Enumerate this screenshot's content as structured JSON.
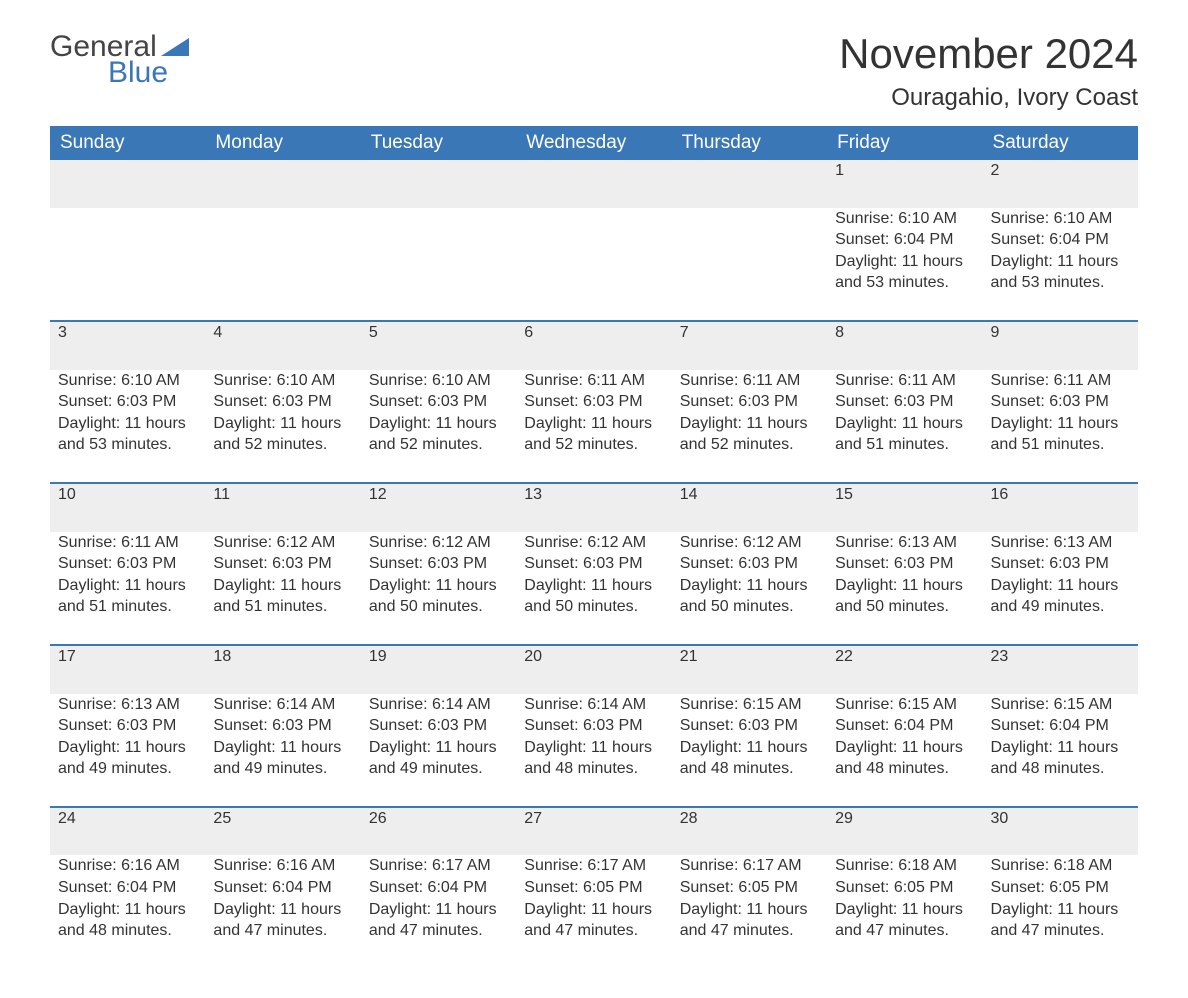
{
  "logo": {
    "word1": "General",
    "word2": "Blue",
    "accent_color": "#3a77b7"
  },
  "title": "November 2024",
  "location": "Ouragahio, Ivory Coast",
  "colors": {
    "header_bg": "#3a77b7",
    "header_text": "#ffffff",
    "daynum_bg": "#eeeeee",
    "row_border": "#3a77b7",
    "body_text": "#333333"
  },
  "fonts": {
    "title_size": 42,
    "location_size": 24,
    "header_size": 19,
    "cell_size": 16
  },
  "weekdays": [
    "Sunday",
    "Monday",
    "Tuesday",
    "Wednesday",
    "Thursday",
    "Friday",
    "Saturday"
  ],
  "weeks": [
    [
      null,
      null,
      null,
      null,
      null,
      {
        "n": "1",
        "sunrise": "6:10 AM",
        "sunset": "6:04 PM",
        "daylight": "11 hours and 53 minutes."
      },
      {
        "n": "2",
        "sunrise": "6:10 AM",
        "sunset": "6:04 PM",
        "daylight": "11 hours and 53 minutes."
      }
    ],
    [
      {
        "n": "3",
        "sunrise": "6:10 AM",
        "sunset": "6:03 PM",
        "daylight": "11 hours and 53 minutes."
      },
      {
        "n": "4",
        "sunrise": "6:10 AM",
        "sunset": "6:03 PM",
        "daylight": "11 hours and 52 minutes."
      },
      {
        "n": "5",
        "sunrise": "6:10 AM",
        "sunset": "6:03 PM",
        "daylight": "11 hours and 52 minutes."
      },
      {
        "n": "6",
        "sunrise": "6:11 AM",
        "sunset": "6:03 PM",
        "daylight": "11 hours and 52 minutes."
      },
      {
        "n": "7",
        "sunrise": "6:11 AM",
        "sunset": "6:03 PM",
        "daylight": "11 hours and 52 minutes."
      },
      {
        "n": "8",
        "sunrise": "6:11 AM",
        "sunset": "6:03 PM",
        "daylight": "11 hours and 51 minutes."
      },
      {
        "n": "9",
        "sunrise": "6:11 AM",
        "sunset": "6:03 PM",
        "daylight": "11 hours and 51 minutes."
      }
    ],
    [
      {
        "n": "10",
        "sunrise": "6:11 AM",
        "sunset": "6:03 PM",
        "daylight": "11 hours and 51 minutes."
      },
      {
        "n": "11",
        "sunrise": "6:12 AM",
        "sunset": "6:03 PM",
        "daylight": "11 hours and 51 minutes."
      },
      {
        "n": "12",
        "sunrise": "6:12 AM",
        "sunset": "6:03 PM",
        "daylight": "11 hours and 50 minutes."
      },
      {
        "n": "13",
        "sunrise": "6:12 AM",
        "sunset": "6:03 PM",
        "daylight": "11 hours and 50 minutes."
      },
      {
        "n": "14",
        "sunrise": "6:12 AM",
        "sunset": "6:03 PM",
        "daylight": "11 hours and 50 minutes."
      },
      {
        "n": "15",
        "sunrise": "6:13 AM",
        "sunset": "6:03 PM",
        "daylight": "11 hours and 50 minutes."
      },
      {
        "n": "16",
        "sunrise": "6:13 AM",
        "sunset": "6:03 PM",
        "daylight": "11 hours and 49 minutes."
      }
    ],
    [
      {
        "n": "17",
        "sunrise": "6:13 AM",
        "sunset": "6:03 PM",
        "daylight": "11 hours and 49 minutes."
      },
      {
        "n": "18",
        "sunrise": "6:14 AM",
        "sunset": "6:03 PM",
        "daylight": "11 hours and 49 minutes."
      },
      {
        "n": "19",
        "sunrise": "6:14 AM",
        "sunset": "6:03 PM",
        "daylight": "11 hours and 49 minutes."
      },
      {
        "n": "20",
        "sunrise": "6:14 AM",
        "sunset": "6:03 PM",
        "daylight": "11 hours and 48 minutes."
      },
      {
        "n": "21",
        "sunrise": "6:15 AM",
        "sunset": "6:03 PM",
        "daylight": "11 hours and 48 minutes."
      },
      {
        "n": "22",
        "sunrise": "6:15 AM",
        "sunset": "6:04 PM",
        "daylight": "11 hours and 48 minutes."
      },
      {
        "n": "23",
        "sunrise": "6:15 AM",
        "sunset": "6:04 PM",
        "daylight": "11 hours and 48 minutes."
      }
    ],
    [
      {
        "n": "24",
        "sunrise": "6:16 AM",
        "sunset": "6:04 PM",
        "daylight": "11 hours and 48 minutes."
      },
      {
        "n": "25",
        "sunrise": "6:16 AM",
        "sunset": "6:04 PM",
        "daylight": "11 hours and 47 minutes."
      },
      {
        "n": "26",
        "sunrise": "6:17 AM",
        "sunset": "6:04 PM",
        "daylight": "11 hours and 47 minutes."
      },
      {
        "n": "27",
        "sunrise": "6:17 AM",
        "sunset": "6:05 PM",
        "daylight": "11 hours and 47 minutes."
      },
      {
        "n": "28",
        "sunrise": "6:17 AM",
        "sunset": "6:05 PM",
        "daylight": "11 hours and 47 minutes."
      },
      {
        "n": "29",
        "sunrise": "6:18 AM",
        "sunset": "6:05 PM",
        "daylight": "11 hours and 47 minutes."
      },
      {
        "n": "30",
        "sunrise": "6:18 AM",
        "sunset": "6:05 PM",
        "daylight": "11 hours and 47 minutes."
      }
    ]
  ],
  "labels": {
    "sunrise": "Sunrise: ",
    "sunset": "Sunset: ",
    "daylight": "Daylight: "
  }
}
